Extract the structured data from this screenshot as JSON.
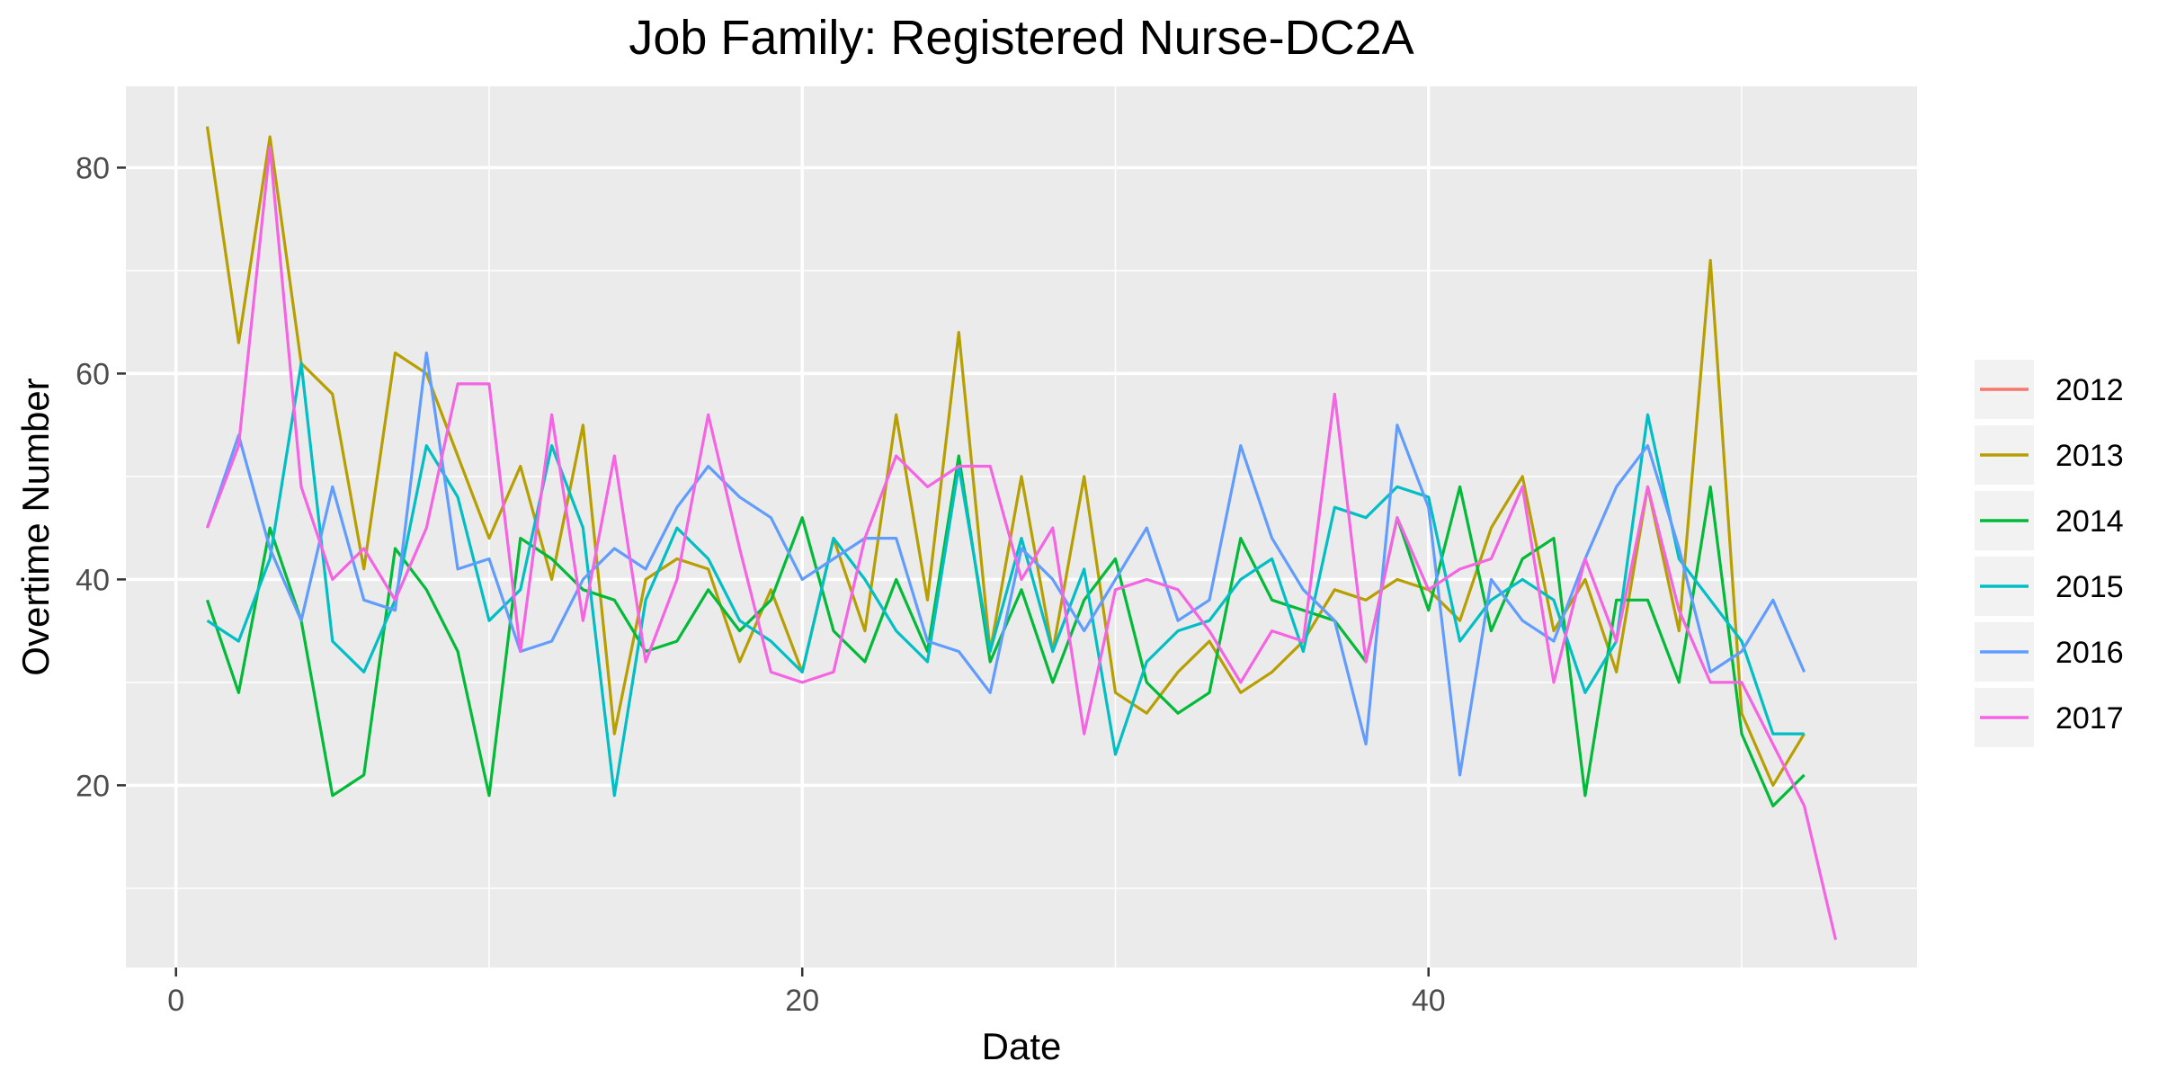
{
  "chart_data": {
    "type": "line",
    "title": "Job Family: Registered Nurse-DC2A",
    "xlabel": "Date",
    "ylabel": "Overtime Number",
    "xlim": [
      -1.6,
      55.6
    ],
    "ylim": [
      2.3,
      87.9
    ],
    "x_ticks": [
      0,
      20,
      40
    ],
    "x_minor_ticks": [
      10,
      30,
      50
    ],
    "y_ticks": [
      20,
      40,
      60,
      80
    ],
    "y_minor_ticks": [
      10,
      30,
      50,
      70
    ],
    "grid": true,
    "legend_position": "right",
    "series": [
      {
        "name": "2012",
        "color": "#F8766D",
        "x": [],
        "values": []
      },
      {
        "name": "2013",
        "color": "#B79F00",
        "x": [
          1,
          2,
          3,
          4,
          5,
          6,
          7,
          8,
          9,
          10,
          11,
          12,
          13,
          14,
          15,
          16,
          17,
          18,
          19,
          20,
          21,
          22,
          23,
          24,
          25,
          26,
          27,
          28,
          29,
          30,
          31,
          32,
          33,
          34,
          35,
          36,
          37,
          38,
          39,
          40,
          41,
          42,
          43,
          44,
          45,
          46,
          47,
          48,
          49,
          50,
          51,
          52
        ],
        "values": [
          84,
          63,
          83,
          61,
          58,
          41,
          62,
          60,
          52,
          44,
          51,
          40,
          55,
          25,
          40,
          42,
          41,
          32,
          39,
          31,
          44,
          35,
          56,
          38,
          64,
          33,
          50,
          33,
          50,
          29,
          27,
          31,
          34,
          29,
          31,
          34,
          39,
          38,
          40,
          39,
          36,
          45,
          50,
          35,
          40,
          31,
          49,
          35,
          71,
          27,
          20,
          25
        ]
      },
      {
        "name": "2014",
        "color": "#00BA38",
        "x": [
          1,
          2,
          3,
          4,
          5,
          6,
          7,
          8,
          9,
          10,
          11,
          12,
          13,
          14,
          15,
          16,
          17,
          18,
          19,
          20,
          21,
          22,
          23,
          24,
          25,
          26,
          27,
          28,
          29,
          30,
          31,
          32,
          33,
          34,
          35,
          36,
          37,
          38,
          39,
          40,
          41,
          42,
          43,
          44,
          45,
          46,
          47,
          48,
          49,
          50,
          51,
          52
        ],
        "values": [
          38,
          29,
          45,
          36,
          19,
          21,
          43,
          39,
          33,
          19,
          44,
          42,
          39,
          38,
          33,
          34,
          39,
          35,
          38,
          46,
          35,
          32,
          40,
          33,
          52,
          32,
          39,
          30,
          38,
          42,
          30,
          27,
          29,
          44,
          38,
          37,
          36,
          32,
          46,
          37,
          49,
          35,
          42,
          44,
          19,
          38,
          38,
          30,
          49,
          25,
          18,
          21
        ]
      },
      {
        "name": "2015",
        "color": "#00BFC4",
        "x": [
          1,
          2,
          3,
          4,
          5,
          6,
          7,
          8,
          9,
          10,
          11,
          12,
          13,
          14,
          15,
          16,
          17,
          18,
          19,
          20,
          21,
          22,
          23,
          24,
          25,
          26,
          27,
          28,
          29,
          30,
          31,
          32,
          33,
          34,
          35,
          36,
          37,
          38,
          39,
          40,
          41,
          42,
          43,
          44,
          45,
          46,
          47,
          48,
          49,
          50,
          51,
          52
        ],
        "values": [
          36,
          34,
          42,
          61,
          34,
          31,
          38,
          53,
          48,
          36,
          39,
          53,
          45,
          19,
          38,
          45,
          42,
          36,
          34,
          31,
          44,
          40,
          35,
          32,
          51,
          33,
          44,
          33,
          41,
          23,
          32,
          35,
          36,
          40,
          42,
          33,
          47,
          46,
          49,
          48,
          34,
          38,
          40,
          38,
          29,
          34,
          56,
          42,
          38,
          34,
          25,
          25
        ]
      },
      {
        "name": "2016",
        "color": "#619CFF",
        "x": [
          1,
          2,
          3,
          4,
          5,
          6,
          7,
          8,
          9,
          10,
          11,
          12,
          13,
          14,
          15,
          16,
          17,
          18,
          19,
          20,
          21,
          22,
          23,
          24,
          25,
          26,
          27,
          28,
          29,
          30,
          31,
          32,
          33,
          34,
          35,
          36,
          37,
          38,
          39,
          40,
          41,
          42,
          43,
          44,
          45,
          46,
          47,
          48,
          49,
          50,
          51,
          52
        ],
        "values": [
          45,
          54,
          43,
          36,
          49,
          38,
          37,
          62,
          41,
          42,
          33,
          34,
          40,
          43,
          41,
          47,
          51,
          48,
          46,
          40,
          42,
          44,
          44,
          34,
          33,
          29,
          43,
          40,
          35,
          40,
          45,
          36,
          38,
          53,
          44,
          39,
          36,
          24,
          55,
          47,
          21,
          40,
          36,
          34,
          42,
          49,
          53,
          43,
          31,
          33,
          38,
          31
        ]
      },
      {
        "name": "2017",
        "color": "#F564E3",
        "x": [
          1,
          2,
          3,
          4,
          5,
          6,
          7,
          8,
          9,
          10,
          11,
          12,
          13,
          14,
          15,
          16,
          17,
          18,
          19,
          20,
          21,
          22,
          23,
          24,
          25,
          26,
          27,
          28,
          29,
          30,
          31,
          32,
          33,
          34,
          35,
          36,
          37,
          38,
          39,
          40,
          41,
          42,
          43,
          44,
          45,
          46,
          47,
          48,
          49,
          50,
          51,
          52,
          53
        ],
        "values": [
          45,
          53,
          82,
          49,
          40,
          43,
          38,
          45,
          59,
          59,
          33,
          56,
          36,
          52,
          32,
          40,
          56,
          43,
          31,
          30,
          31,
          44,
          52,
          49,
          51,
          51,
          40,
          45,
          25,
          39,
          40,
          39,
          35,
          30,
          35,
          34,
          58,
          32,
          46,
          39,
          41,
          42,
          49,
          30,
          42,
          34,
          49,
          37,
          30,
          30,
          24,
          18,
          5
        ]
      }
    ]
  }
}
